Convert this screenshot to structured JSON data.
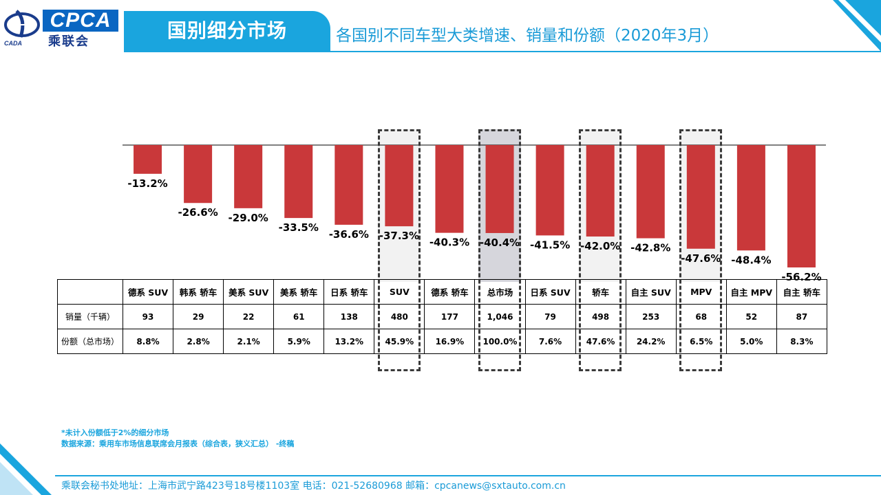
{
  "logo": {
    "brand": "CPCA",
    "cn_name": "乘联会",
    "sub": "CADA"
  },
  "header": {
    "title": "国别细分市场",
    "subtitle": "各国别不同车型大类增速、销量和份额（2020年3月）"
  },
  "colors": {
    "bar": "#c9383a",
    "accent": "#1aa5de",
    "highlight_grey": "#f2f2f2",
    "highlight_dark": "#d6d6dc"
  },
  "chart_data": {
    "type": "bar",
    "categories": [
      "德系 SUV",
      "韩系 轿车",
      "美系 SUV",
      "美系 轿车",
      "日系 轿车",
      "SUV",
      "德系 轿车",
      "总市场",
      "日系 SUV",
      "轿车",
      "自主 SUV",
      "MPV",
      "自主 MPV",
      "自主 轿车"
    ],
    "values": [
      -13.2,
      -26.6,
      -29.0,
      -33.5,
      -36.6,
      -37.3,
      -40.3,
      -40.4,
      -41.5,
      -42.0,
      -42.8,
      -47.6,
      -48.4,
      -56.2
    ],
    "value_labels": [
      "-13.2%",
      "-26.6%",
      "-29.0%",
      "-33.5%",
      "-36.6%",
      "-37.3%",
      "-40.3%",
      "-40.4%",
      "-41.5%",
      "-42.0%",
      "-42.8%",
      "-47.6%",
      "-48.4%",
      "-56.2%"
    ],
    "ylim": [
      -60,
      0
    ],
    "highlighted": [
      "SUV",
      "总市场",
      "轿车",
      "MPV"
    ]
  },
  "table": {
    "sales_label": "销量（千辆）",
    "share_label": "份额（总市场）",
    "sales": [
      "93",
      "29",
      "22",
      "61",
      "138",
      "480",
      "177",
      "1,046",
      "79",
      "498",
      "253",
      "68",
      "52",
      "87"
    ],
    "shares": [
      "8.8%",
      "2.8%",
      "2.1%",
      "5.9%",
      "13.2%",
      "45.9%",
      "16.9%",
      "100.0%",
      "7.6%",
      "47.6%",
      "24.2%",
      "6.5%",
      "5.0%",
      "8.3%"
    ]
  },
  "notes": {
    "line1": "*未计入份额低于2%的细分市场",
    "line2": "数据来源：乘用车市场信息联席会月报表（综合表，狭义汇总）  -终稿"
  },
  "footer": {
    "text": "乘联会秘书处地址：上海市武宁路423号18号楼1103室  电话：021-52680968   邮箱：cpcanews@sxtauto.com.cn"
  }
}
